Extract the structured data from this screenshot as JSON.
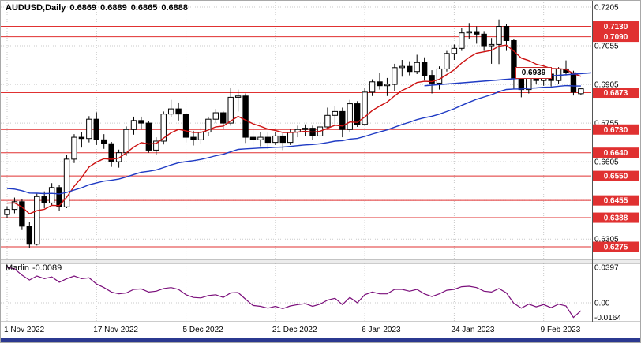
{
  "header": {
    "symbol": "AUDUSD,Daily",
    "open": "0.6869",
    "high": "0.6889",
    "low": "0.6865",
    "close": "0.6888"
  },
  "indicator_label": {
    "name": "Marlin",
    "value": "-0.0089"
  },
  "colors": {
    "level": "#e03131",
    "level_badge": "#e03131",
    "badge_text": "#ffffff",
    "grid": "#c9c9c9",
    "candle_border": "#000000",
    "candle_bull": "#ffffff",
    "candle_bear": "#000000",
    "ma_fast": "#cc1111",
    "ma_slow": "#1f3bc4",
    "trendline": "#1f3bc4",
    "marlin": "#7b0f7b",
    "axis_text": "#000000",
    "separator": "#9a9a9a",
    "bottom_bar": "#2b3990"
  },
  "chart_data": {
    "type": "candlestick",
    "symbol": "AUDUSD",
    "timeframe": "Daily",
    "y_axis": {
      "min": 0.6275,
      "max": 0.7205,
      "ticks": [
        0.7205,
        0.7055,
        0.6905,
        0.6755,
        0.6605,
        0.6455,
        0.6305
      ],
      "tick_labels": [
        "0.7205",
        "0.7055",
        "0.6905",
        "0.6755",
        "0.6605",
        "0.6455",
        "0.6305"
      ]
    },
    "x_axis": {
      "labels": [
        {
          "index": 0,
          "text": "1 Nov 2022"
        },
        {
          "index": 12,
          "text": "17 Nov 2022"
        },
        {
          "index": 24,
          "text": "5 Dec 2022"
        },
        {
          "index": 36,
          "text": "21 Dec 2022"
        },
        {
          "index": 48,
          "text": "6 Jan 2023"
        },
        {
          "index": 60,
          "text": "24 Jan 2023"
        },
        {
          "index": 72,
          "text": "9 Feb 2023"
        }
      ]
    },
    "levels": [
      {
        "price": 0.713,
        "label": "0.7130"
      },
      {
        "price": 0.709,
        "label": "0.7090"
      },
      {
        "price": 0.6873,
        "label": "0.6873"
      },
      {
        "price": 0.673,
        "label": "0.6730"
      },
      {
        "price": 0.664,
        "label": "0.6640"
      },
      {
        "price": 0.655,
        "label": "0.6550"
      },
      {
        "price": 0.6455,
        "label": "0.6455"
      },
      {
        "price": 0.6388,
        "label": "0.6388"
      },
      {
        "price": 0.6275,
        "label": "0.6275"
      }
    ],
    "candles": [
      [
        0.64,
        0.6432,
        0.6386,
        0.642
      ],
      [
        0.642,
        0.6466,
        0.6405,
        0.645
      ],
      [
        0.645,
        0.6459,
        0.634,
        0.6355
      ],
      [
        0.6355,
        0.6372,
        0.6272,
        0.6285
      ],
      [
        0.6285,
        0.6481,
        0.628,
        0.647
      ],
      [
        0.647,
        0.649,
        0.6425,
        0.6445
      ],
      [
        0.6445,
        0.6522,
        0.6435,
        0.6505
      ],
      [
        0.6505,
        0.6515,
        0.6415,
        0.643
      ],
      [
        0.643,
        0.6632,
        0.6425,
        0.6615
      ],
      [
        0.6615,
        0.6712,
        0.66,
        0.67
      ],
      [
        0.67,
        0.672,
        0.666,
        0.6695
      ],
      [
        0.6695,
        0.6782,
        0.668,
        0.677
      ],
      [
        0.677,
        0.6797,
        0.667,
        0.669
      ],
      [
        0.669,
        0.6712,
        0.6655,
        0.6675
      ],
      [
        0.6675,
        0.6682,
        0.6585,
        0.6605
      ],
      [
        0.6605,
        0.6652,
        0.6582,
        0.664
      ],
      [
        0.664,
        0.6742,
        0.6628,
        0.673
      ],
      [
        0.673,
        0.678,
        0.671,
        0.6765
      ],
      [
        0.6765,
        0.678,
        0.673,
        0.6755
      ],
      [
        0.6755,
        0.6762,
        0.664,
        0.665
      ],
      [
        0.665,
        0.67,
        0.663,
        0.6685
      ],
      [
        0.6685,
        0.68,
        0.6672,
        0.679
      ],
      [
        0.679,
        0.6845,
        0.678,
        0.681
      ],
      [
        0.681,
        0.6835,
        0.6765,
        0.679
      ],
      [
        0.679,
        0.6795,
        0.668,
        0.67
      ],
      [
        0.67,
        0.6725,
        0.6668,
        0.669
      ],
      [
        0.669,
        0.6738,
        0.6675,
        0.672
      ],
      [
        0.672,
        0.678,
        0.6705,
        0.677
      ],
      [
        0.677,
        0.681,
        0.6755,
        0.6795
      ],
      [
        0.6795,
        0.68,
        0.673,
        0.6755
      ],
      [
        0.6755,
        0.6893,
        0.6745,
        0.6855
      ],
      [
        0.6855,
        0.6885,
        0.68,
        0.686
      ],
      [
        0.686,
        0.687,
        0.6678,
        0.67
      ],
      [
        0.67,
        0.674,
        0.6667,
        0.669
      ],
      [
        0.669,
        0.672,
        0.6665,
        0.67
      ],
      [
        0.67,
        0.6718,
        0.6655,
        0.668
      ],
      [
        0.668,
        0.6722,
        0.667,
        0.6705
      ],
      [
        0.6705,
        0.6715,
        0.665,
        0.668
      ],
      [
        0.668,
        0.673,
        0.667,
        0.672
      ],
      [
        0.672,
        0.6745,
        0.67,
        0.673
      ],
      [
        0.673,
        0.675,
        0.6705,
        0.6735
      ],
      [
        0.6735,
        0.6745,
        0.669,
        0.6705
      ],
      [
        0.6705,
        0.6748,
        0.6695,
        0.674
      ],
      [
        0.674,
        0.6815,
        0.673,
        0.6785
      ],
      [
        0.6785,
        0.682,
        0.675,
        0.68
      ],
      [
        0.68,
        0.6815,
        0.67,
        0.673
      ],
      [
        0.673,
        0.6845,
        0.672,
        0.683
      ],
      [
        0.683,
        0.684,
        0.674,
        0.675
      ],
      [
        0.675,
        0.689,
        0.6745,
        0.6875
      ],
      [
        0.6875,
        0.6925,
        0.686,
        0.6915
      ],
      [
        0.6915,
        0.695,
        0.6885,
        0.69
      ],
      [
        0.69,
        0.693,
        0.686,
        0.6905
      ],
      [
        0.6905,
        0.6985,
        0.688,
        0.697
      ],
      [
        0.697,
        0.7,
        0.6935,
        0.6975
      ],
      [
        0.6975,
        0.6995,
        0.694,
        0.6955
      ],
      [
        0.6955,
        0.702,
        0.6945,
        0.699
      ],
      [
        0.699,
        0.701,
        0.692,
        0.694
      ],
      [
        0.694,
        0.696,
        0.687,
        0.691
      ],
      [
        0.691,
        0.6975,
        0.6885,
        0.6965
      ],
      [
        0.6965,
        0.7035,
        0.6955,
        0.7025
      ],
      [
        0.7025,
        0.706,
        0.7,
        0.7045
      ],
      [
        0.7045,
        0.7125,
        0.7035,
        0.7105
      ],
      [
        0.7105,
        0.7143,
        0.708,
        0.711
      ],
      [
        0.711,
        0.713,
        0.7063,
        0.71
      ],
      [
        0.71,
        0.7112,
        0.7035,
        0.7055
      ],
      [
        0.7055,
        0.7085,
        0.6985,
        0.706
      ],
      [
        0.706,
        0.7157,
        0.6984,
        0.713
      ],
      [
        0.713,
        0.714,
        0.7035,
        0.7075
      ],
      [
        0.7075,
        0.708,
        0.6886,
        0.693
      ],
      [
        0.693,
        0.6948,
        0.6855,
        0.6885
      ],
      [
        0.6885,
        0.6962,
        0.687,
        0.6955
      ],
      [
        0.6955,
        0.697,
        0.6905,
        0.692
      ],
      [
        0.692,
        0.6955,
        0.69,
        0.6945
      ],
      [
        0.6945,
        0.695,
        0.6897,
        0.692
      ],
      [
        0.692,
        0.6972,
        0.6908,
        0.6965
      ],
      [
        0.6965,
        0.6998,
        0.694,
        0.695
      ],
      [
        0.695,
        0.6958,
        0.6862,
        0.6875
      ],
      [
        0.6869,
        0.6889,
        0.6865,
        0.6888
      ]
    ],
    "moving_averages": [
      {
        "name": "fast",
        "period": 10,
        "seed": 0.645,
        "color": "#cc1111"
      },
      {
        "name": "slow",
        "period": 45,
        "seed": 0.6505,
        "color": "#1f3bc4"
      }
    ],
    "trendline": {
      "from_index": 56,
      "from_price": 0.69,
      "to_index": 79,
      "to_price": 0.695,
      "color": "#1f3bc4",
      "label": "0.6939"
    },
    "marlin": {
      "name": "Marlin",
      "color": "#7b0f7b",
      "last_value": "-0.0089",
      "ticks": [
        {
          "value": 0.0397,
          "label": "0.0397"
        },
        {
          "value": 0,
          "label": "0.00"
        },
        {
          "value": -0.0164,
          "label": "-0.0164"
        }
      ],
      "values": [
        0.0397,
        0.038,
        0.031,
        0.0255,
        0.03,
        0.027,
        0.029,
        0.023,
        0.027,
        0.03,
        0.027,
        0.028,
        0.021,
        0.017,
        0.012,
        0.01,
        0.011,
        0.015,
        0.0155,
        0.012,
        0.013,
        0.016,
        0.017,
        0.015,
        0.009,
        0.006,
        0.0055,
        0.008,
        0.009,
        0.006,
        0.011,
        0.0115,
        0.004,
        -0.003,
        -0.004,
        -0.006,
        -0.004,
        -0.0065,
        -0.0035,
        -0.002,
        -0.001,
        -0.004,
        -0.0015,
        0.003,
        0.005,
        -0.002,
        0.006,
        0.0,
        0.009,
        0.012,
        0.01,
        0.01,
        0.015,
        0.015,
        0.013,
        0.015,
        0.01,
        0.007,
        0.01,
        0.014,
        0.015,
        0.018,
        0.0185,
        0.017,
        0.013,
        0.012,
        0.016,
        0.011,
        -0.0005,
        -0.006,
        -0.0015,
        -0.0045,
        -0.002,
        -0.0055,
        -0.0015,
        -0.0035,
        -0.0164,
        -0.0089
      ]
    }
  }
}
